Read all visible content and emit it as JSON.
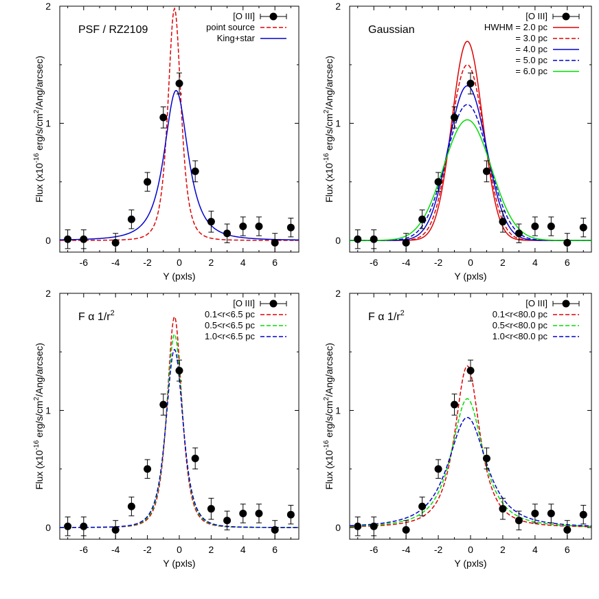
{
  "colors": {
    "red": "#dd0000",
    "green": "#00dd00",
    "blue": "#0000cc",
    "black": "#000000"
  },
  "chart_data": [
    {
      "type": "line",
      "label": "PSF / RZ2109",
      "xlabel": "Y (pxls)",
      "ylabel_parts": [
        "Flux (x10",
        "-16",
        " erg/s/cm",
        "2",
        "/Ang/arcsec)"
      ],
      "xlim": [
        -7.5,
        7.5
      ],
      "ylim": [
        -0.1,
        2.0
      ],
      "xticks": [
        -6,
        -4,
        -2,
        0,
        2,
        4,
        6
      ],
      "yticks": [
        0,
        1,
        2
      ],
      "legend_position": "top-right",
      "points": {
        "name": "[O III]",
        "x": [
          -7,
          -6,
          -4,
          -3,
          -2,
          -1,
          0,
          1,
          2,
          3,
          4,
          5,
          6,
          7
        ],
        "y": [
          0.01,
          0.01,
          -0.02,
          0.18,
          0.5,
          1.05,
          1.34,
          0.59,
          0.16,
          0.06,
          0.12,
          0.12,
          -0.02,
          0.11
        ],
        "err": [
          0.08,
          0.08,
          0.08,
          0.08,
          0.08,
          0.09,
          0.09,
          0.09,
          0.09,
          0.08,
          0.08,
          0.08,
          0.08,
          0.08
        ]
      },
      "series": [
        {
          "name": "point source",
          "color": "#dd0000",
          "dash": "dashed",
          "shape": "lorentz",
          "amp": 1.98,
          "x0": -0.3,
          "width": 0.75,
          "power": 2
        },
        {
          "name": "King+star",
          "color": "#0000cc",
          "dash": "solid",
          "shape": "lorentz",
          "amp": 1.28,
          "x0": -0.2,
          "width": 1.15,
          "power": 1.5
        }
      ]
    },
    {
      "type": "line",
      "label": "Gaussian",
      "legend_header": "HWHM = ",
      "xlabel": "Y (pxls)",
      "ylabel_parts": [
        "Flux (x10",
        "-16",
        " erg/s/cm",
        "2",
        "/Ang/arcsec)"
      ],
      "xlim": [
        -7.5,
        7.5
      ],
      "ylim": [
        -0.1,
        2.0
      ],
      "xticks": [
        -6,
        -4,
        -2,
        0,
        2,
        4,
        6
      ],
      "yticks": [
        0,
        1,
        2
      ],
      "legend_position": "top-right",
      "points": {
        "name": "[O III]",
        "x": [
          -7,
          -6,
          -4,
          -3,
          -2,
          -1,
          0,
          1,
          2,
          3,
          4,
          5,
          6,
          7
        ],
        "y": [
          0.01,
          0.01,
          -0.02,
          0.18,
          0.5,
          1.05,
          1.34,
          0.59,
          0.16,
          0.06,
          0.12,
          0.12,
          -0.02,
          0.11
        ],
        "err": [
          0.08,
          0.08,
          0.08,
          0.08,
          0.08,
          0.09,
          0.09,
          0.09,
          0.09,
          0.08,
          0.08,
          0.08,
          0.08,
          0.08
        ]
      },
      "series": [
        {
          "name": "HWHM = 2.0 pc",
          "color": "#dd0000",
          "dash": "solid",
          "shape": "gauss",
          "amp": 1.7,
          "x0": -0.2,
          "width": 0.95
        },
        {
          "name": "= 3.0 pc",
          "color": "#dd0000",
          "dash": "dashed",
          "shape": "gauss",
          "amp": 1.5,
          "x0": -0.2,
          "width": 1.05
        },
        {
          "name": "= 4.0 pc",
          "color": "#0000cc",
          "dash": "solid",
          "shape": "gauss",
          "amp": 1.32,
          "x0": -0.2,
          "width": 1.18
        },
        {
          "name": "= 5.0 pc",
          "color": "#0000cc",
          "dash": "dashed",
          "shape": "gauss",
          "amp": 1.16,
          "x0": -0.2,
          "width": 1.32
        },
        {
          "name": "= 6.0 pc",
          "color": "#00dd00",
          "dash": "solid",
          "shape": "gauss",
          "amp": 1.03,
          "x0": -0.2,
          "width": 1.48
        }
      ]
    },
    {
      "type": "line",
      "label": "F α 1/r",
      "label_sup": "2",
      "xlabel": "Y (pxls)",
      "ylabel_parts": [
        "Flux (x10",
        "-16",
        " erg/s/cm",
        "2",
        "/Ang/arcsec)"
      ],
      "xlim": [
        -7.5,
        7.5
      ],
      "ylim": [
        -0.1,
        2.0
      ],
      "xticks": [
        -6,
        -4,
        -2,
        0,
        2,
        4,
        6
      ],
      "yticks": [
        0,
        1,
        2
      ],
      "legend_position": "top-right",
      "points": {
        "name": "[O III]",
        "x": [
          -7,
          -6,
          -4,
          -3,
          -2,
          -1,
          0,
          1,
          2,
          3,
          4,
          5,
          6,
          7
        ],
        "y": [
          0.01,
          0.01,
          -0.02,
          0.18,
          0.5,
          1.05,
          1.34,
          0.59,
          0.16,
          0.06,
          0.12,
          0.12,
          -0.02,
          0.11
        ],
        "err": [
          0.08,
          0.08,
          0.08,
          0.08,
          0.08,
          0.09,
          0.09,
          0.09,
          0.09,
          0.08,
          0.08,
          0.08,
          0.08,
          0.08
        ]
      },
      "series": [
        {
          "name": "0.1<r<6.5 pc",
          "color": "#dd0000",
          "dash": "dashed",
          "shape": "lorentz",
          "amp": 1.8,
          "x0": -0.3,
          "width": 0.85,
          "power": 2
        },
        {
          "name": "0.5<r<6.5 pc",
          "color": "#00dd00",
          "dash": "dashed",
          "shape": "lorentz",
          "amp": 1.65,
          "x0": -0.3,
          "width": 0.92,
          "power": 2
        },
        {
          "name": "1.0<r<6.5 pc",
          "color": "#0000cc",
          "dash": "dashed",
          "shape": "lorentz",
          "amp": 1.52,
          "x0": -0.3,
          "width": 0.98,
          "power": 2
        }
      ]
    },
    {
      "type": "line",
      "label": "F α 1/r",
      "label_sup": "2",
      "xlabel": "Y (pxls)",
      "ylabel_parts": [
        "Flux (x10",
        "-16",
        " erg/s/cm",
        "2",
        "/Ang/arcsec)"
      ],
      "xlim": [
        -7.5,
        7.5
      ],
      "ylim": [
        -0.1,
        2.0
      ],
      "xticks": [
        -6,
        -4,
        -2,
        0,
        2,
        4,
        6
      ],
      "yticks": [
        0,
        1,
        2
      ],
      "legend_position": "top-right",
      "points": {
        "name": "[O III]",
        "x": [
          -7,
          -6,
          -4,
          -3,
          -2,
          -1,
          0,
          1,
          2,
          3,
          4,
          5,
          6,
          7
        ],
        "y": [
          0.01,
          0.01,
          -0.02,
          0.18,
          0.5,
          1.05,
          1.34,
          0.59,
          0.16,
          0.06,
          0.12,
          0.12,
          -0.02,
          0.11
        ],
        "err": [
          0.08,
          0.08,
          0.08,
          0.08,
          0.08,
          0.09,
          0.09,
          0.09,
          0.09,
          0.08,
          0.08,
          0.08,
          0.08,
          0.08
        ]
      },
      "series": [
        {
          "name": "0.1<r<80.0 pc",
          "color": "#dd0000",
          "dash": "dashed",
          "shape": "lorentz",
          "amp": 1.38,
          "x0": -0.2,
          "width": 1.15,
          "power": 1.4
        },
        {
          "name": "0.5<r<80.0 pc",
          "color": "#00dd00",
          "dash": "dashed",
          "shape": "lorentz",
          "amp": 1.1,
          "x0": -0.2,
          "width": 1.45,
          "power": 1.4
        },
        {
          "name": "1.0<r<80.0 pc",
          "color": "#0000cc",
          "dash": "dashed",
          "shape": "lorentz",
          "amp": 0.94,
          "x0": -0.2,
          "width": 1.75,
          "power": 1.4
        }
      ]
    }
  ]
}
